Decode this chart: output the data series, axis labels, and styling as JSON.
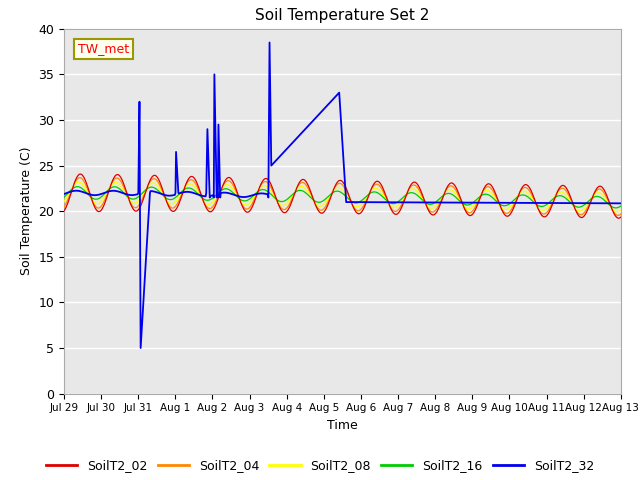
{
  "title": "Soil Temperature Set 2",
  "xlabel": "Time",
  "ylabel": "Soil Temperature (C)",
  "ylim": [
    0,
    40
  ],
  "yticks": [
    0,
    5,
    10,
    15,
    20,
    25,
    30,
    35,
    40
  ],
  "bg_color": "#e8e8e8",
  "fig_color": "#ffffff",
  "annotation_label": "TW_met",
  "series_colors": {
    "SoilT2_02": "#dd0000",
    "SoilT2_04": "#ff8800",
    "SoilT2_08": "#ffff00",
    "SoilT2_16": "#00cc00",
    "SoilT2_32": "#0000ee"
  },
  "x_tick_labels": [
    "Jul 29",
    "Jul 30",
    "Jul 31",
    "Aug 1",
    "Aug 2",
    "Aug 3",
    "Aug 4",
    "Aug 5",
    "Aug 6",
    "Aug 7",
    "Aug 8",
    "Aug 9",
    "Aug 10",
    "Aug 11",
    "Aug 12",
    "Aug 13"
  ],
  "n_points": 960,
  "total_days": 15.0
}
